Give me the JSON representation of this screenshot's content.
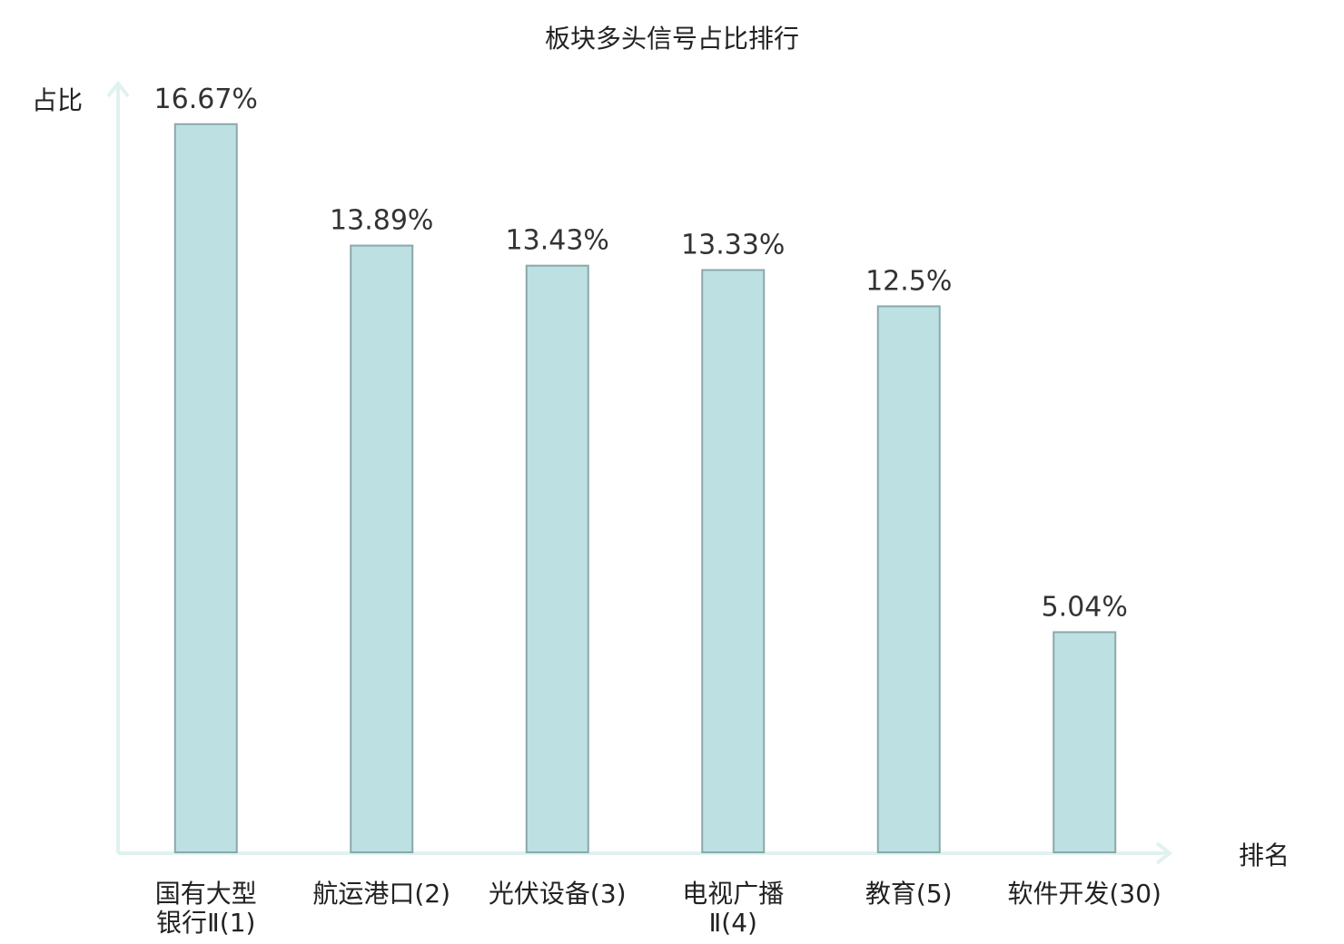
{
  "chart_data": {
    "type": "bar",
    "title": "板块多头信号占比排行",
    "xlabel": "排名",
    "ylabel": "占比",
    "ylim": [
      0,
      17.6
    ],
    "grid": false,
    "legend": "none",
    "categories": [
      [
        "国有大型",
        "银行Ⅱ(1)"
      ],
      [
        "航运港口(2)"
      ],
      [
        "光伏设备(3)"
      ],
      [
        "电视广播",
        "Ⅱ(4)"
      ],
      [
        "教育(5)"
      ],
      [
        "软件开发(30)"
      ]
    ],
    "values": [
      16.67,
      13.89,
      13.43,
      13.33,
      12.5,
      5.04
    ],
    "value_labels": [
      "16.67%",
      "13.89%",
      "13.43%",
      "13.33%",
      "12.5%",
      "5.04%"
    ],
    "highlight_index": 5
  },
  "colors": {
    "bar_fill": "#bde0e3",
    "bar_stroke": "#8aa8aa",
    "axis": "#e0f2f0",
    "text": "#222222",
    "highlight_text": "#e8191b"
  }
}
